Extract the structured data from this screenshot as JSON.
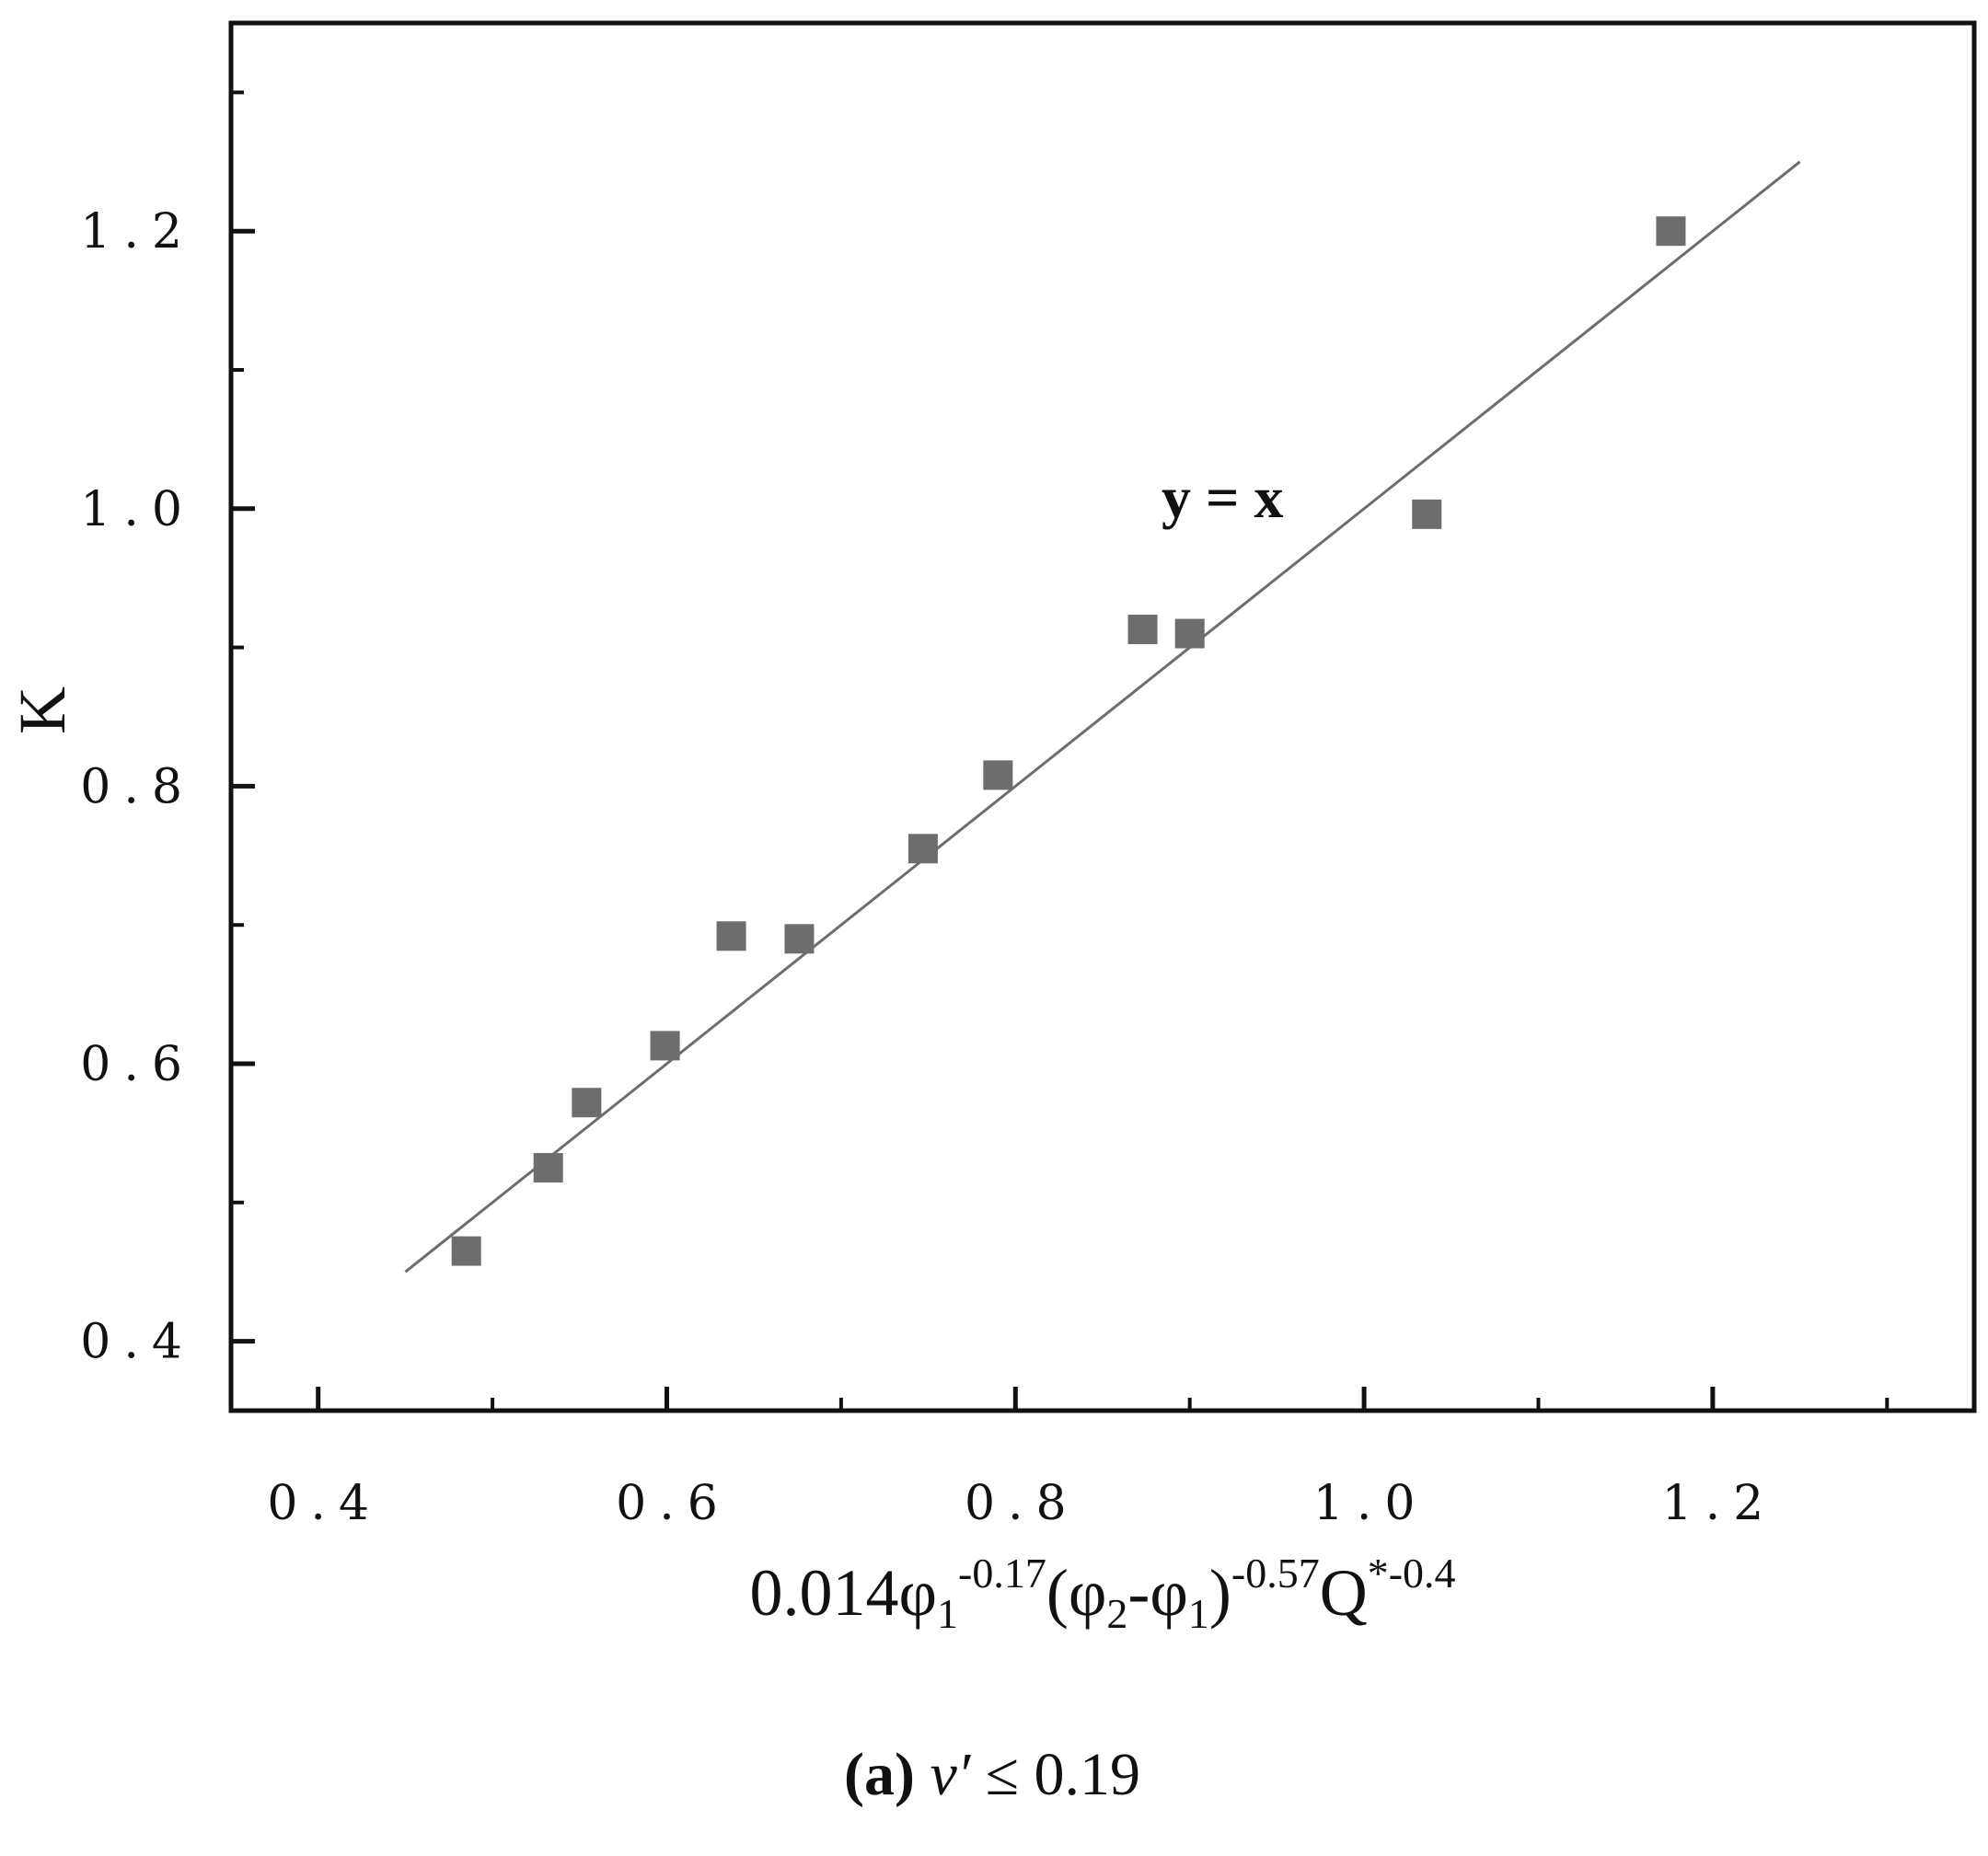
{
  "chart_data": {
    "type": "scatter",
    "xlabel": {
      "base": "0.014φ",
      "sub1": "1",
      "sup1": "-0.17",
      "mid1": "(φ",
      "sub2": "2",
      "mid2": "-φ",
      "sub3": "1",
      "mid3": ")",
      "sup2": "-0.57",
      "mid4": "Q",
      "sup3": "*-0.4"
    },
    "ylabel": "K",
    "xlim": [
      0.35,
      1.35
    ],
    "ylim": [
      0.35,
      1.35
    ],
    "x_ticks": [
      0.4,
      0.6,
      0.8,
      1.0,
      1.2
    ],
    "x_tick_labels": [
      "0.4",
      "0.6",
      "0.8",
      "1.0",
      "1.2"
    ],
    "y_ticks": [
      0.4,
      0.6,
      0.8,
      1.0,
      1.2
    ],
    "y_tick_labels": [
      "0.4",
      "0.6",
      "0.8",
      "1.0",
      "1.2"
    ],
    "minor_ticks": [
      0.5,
      0.7,
      0.9,
      1.1,
      1.3
    ],
    "grid": false,
    "marker": "square",
    "marker_color": "#6d6d6d",
    "line_color": "#6d6d6d",
    "points": [
      {
        "x": 0.485,
        "y": 0.465
      },
      {
        "x": 0.532,
        "y": 0.525
      },
      {
        "x": 0.554,
        "y": 0.572
      },
      {
        "x": 0.599,
        "y": 0.613
      },
      {
        "x": 0.637,
        "y": 0.692
      },
      {
        "x": 0.676,
        "y": 0.69
      },
      {
        "x": 0.747,
        "y": 0.755
      },
      {
        "x": 0.79,
        "y": 0.808
      },
      {
        "x": 0.873,
        "y": 0.913
      },
      {
        "x": 0.9,
        "y": 0.91
      },
      {
        "x": 1.036,
        "y": 0.996
      },
      {
        "x": 1.176,
        "y": 1.2
      }
    ],
    "reference_line": {
      "label": "y = x",
      "x": [
        0.45,
        1.25
      ],
      "y": [
        0.45,
        1.25
      ]
    }
  },
  "caption": {
    "letter": "(a)",
    "variable": "v′",
    "condition": " ≤ 0.19"
  }
}
